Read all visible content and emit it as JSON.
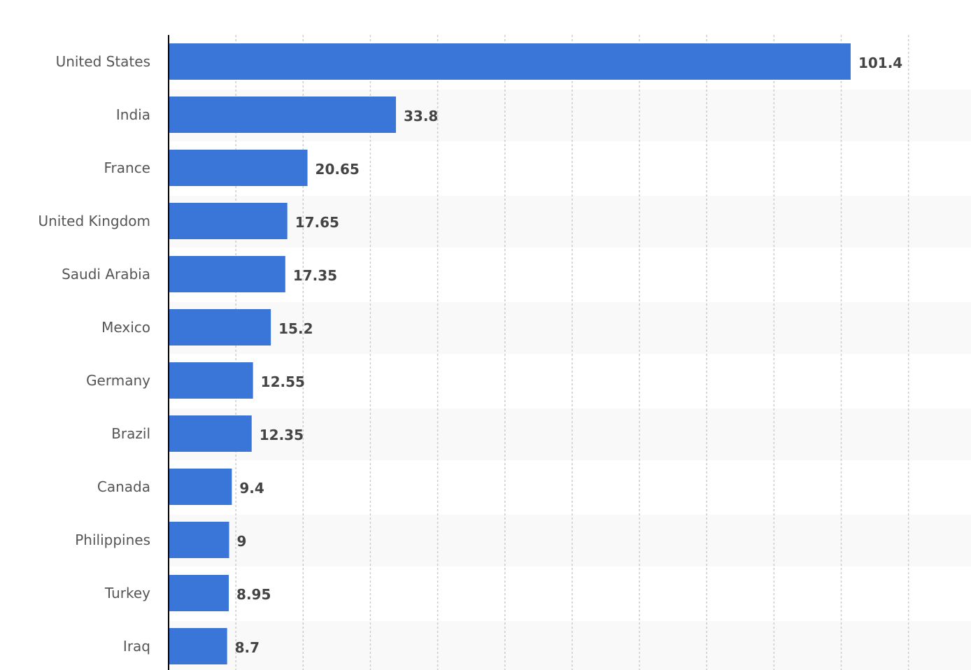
{
  "chart_data": {
    "type": "bar",
    "orientation": "horizontal",
    "title": "",
    "xlabel": "",
    "ylabel": "",
    "categories": [
      "United States",
      "India",
      "France",
      "United Kingdom",
      "Saudi Arabia",
      "Mexico",
      "Germany",
      "Brazil",
      "Canada",
      "Philippines",
      "Turkey",
      "Iraq"
    ],
    "values": [
      101.4,
      33.8,
      20.65,
      17.65,
      17.35,
      15.2,
      12.55,
      12.35,
      9.4,
      9,
      8.95,
      8.7
    ],
    "data_labels": [
      "101.4",
      "33.8",
      "20.65",
      "17.65",
      "17.35",
      "15.2",
      "12.55",
      "12.35",
      "9.4",
      "9",
      "8.95",
      "8.7"
    ],
    "xlim": [
      0,
      120
    ],
    "grid_step": 10,
    "grid": true,
    "legend": "none",
    "colors": {
      "bar": "#3a76d8",
      "grid": "#cccccc",
      "band": "#f9f9f9",
      "axis": "#000000"
    }
  }
}
